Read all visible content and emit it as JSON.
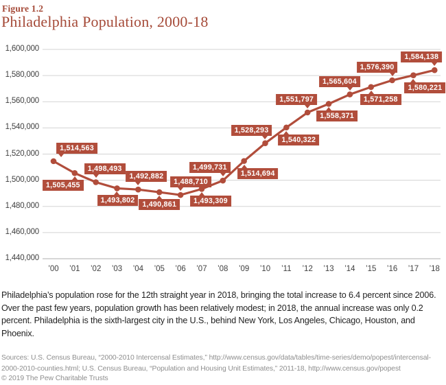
{
  "figure": {
    "label": "Figure 1.2",
    "title": "Philadelphia Population, 2000-18"
  },
  "chart_data": {
    "type": "line",
    "title": "Philadelphia Population, 2000-18",
    "x_tick_labels": [
      "’00",
      "’01",
      "’02",
      "’03",
      "’04",
      "’05",
      "’06",
      "’07",
      "’08",
      "’09",
      "’10",
      "’11",
      "’12",
      "’13",
      "’14",
      "’15",
      "’16",
      "’17",
      "’18"
    ],
    "years": [
      2000,
      2001,
      2002,
      2003,
      2004,
      2005,
      2006,
      2007,
      2008,
      2009,
      2010,
      2011,
      2012,
      2013,
      2014,
      2015,
      2016,
      2017,
      2018
    ],
    "series": [
      {
        "name": "Philadelphia population",
        "values": [
          1514563,
          1505455,
          1498493,
          1493802,
          1492882,
          1490861,
          1488710,
          1493309,
          1499731,
          1514694,
          1528293,
          1540322,
          1551797,
          1558371,
          1565604,
          1571258,
          1576390,
          1580221,
          1584138
        ]
      }
    ],
    "data_labels": [
      "1,514,563",
      "1,505,455",
      "1,498,493",
      "1,493,802",
      "1,492,882",
      "1,490,861",
      "1,488,710",
      "1,493,309",
      "1,499,731",
      "1,514,694",
      "1,528,293",
      "1,540,322",
      "1,551,797",
      "1,558,371",
      "1,565,604",
      "1,571,258",
      "1,576,390",
      "1,580,221",
      "1,584,138"
    ],
    "ylim": [
      1440000,
      1600000
    ],
    "ytick_step": 20000,
    "ytick_labels": [
      "1,600,000",
      "1,580,000",
      "1,560,000",
      "1,540,000",
      "1,520,000",
      "1,500,000",
      "1,480,000",
      "1,460,000",
      "1,440,000"
    ],
    "xlabel": "",
    "ylabel": "",
    "grid": true,
    "legend": "none",
    "layout_hints": {
      "label_sides": [
        "above",
        "below",
        "above",
        "below",
        "above",
        "below",
        "above",
        "below",
        "above",
        "below",
        "above",
        "below",
        "above",
        "below",
        "above",
        "below",
        "above",
        "below",
        "above"
      ],
      "label_dx": [
        34,
        -17,
        13,
        1,
        12,
        0,
        15,
        13,
        -19,
        20,
        -20,
        18,
        -16,
        12,
        -15,
        14,
        -22,
        17,
        -19
      ]
    },
    "colors": {
      "line": "#b14d3b",
      "badge": "#b14d3b",
      "title": "#a54a38",
      "gridline": "#d3d3d3",
      "axis_line": "#aeaeae",
      "tick_text": "#404040"
    }
  },
  "caption": "Philadelphia’s population rose for the 12th straight year in 2018, bringing the total increase to 6.4 percent since 2006. Over the past few years, population growth has been relatively modest; in 2018, the annual increase was only 0.2 percent. Philadelphia is the sixth-largest city in the U.S., behind New York, Los Angeles, Chicago, Houston, and Phoenix.",
  "sources": "Sources: U.S. Census Bureau, “2000-2010 Intercensal Estimates,” http://www.census.gov/data/tables/time-series/demo/popest/intercensal-2000-2010-counties.html; U.S. Census Bureau, “Population and Housing Unit Estimates,” 2011-18, http://www.census.gov/popest",
  "copyright": "© 2019 The Pew Charitable Trusts"
}
